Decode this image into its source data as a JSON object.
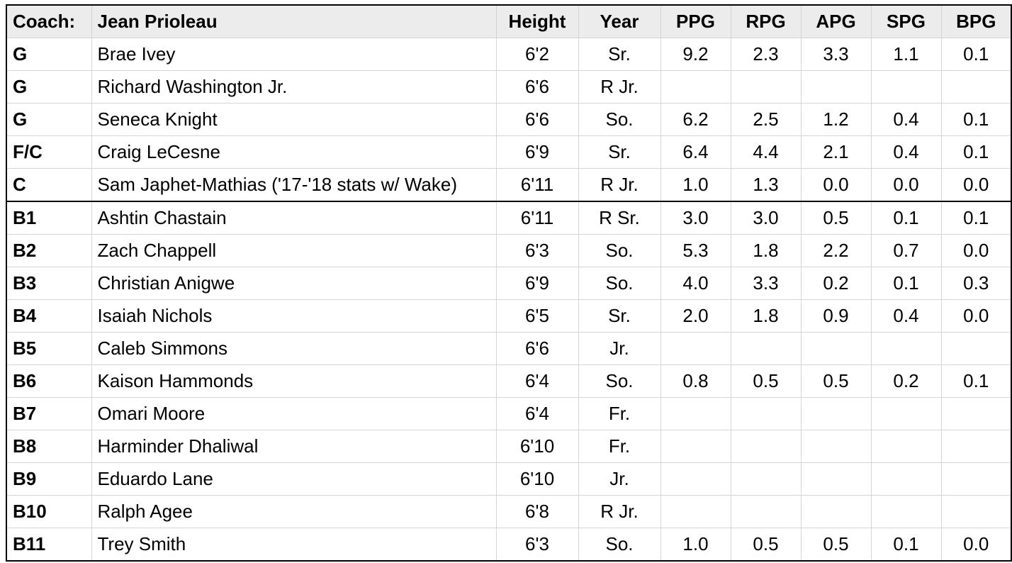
{
  "header": {
    "coach_label": "Coach:",
    "coach_name": "Jean Prioleau",
    "columns": [
      "Height",
      "Year",
      "PPG",
      "RPG",
      "APG",
      "SPG",
      "BPG"
    ]
  },
  "rows": [
    {
      "pos": "G",
      "name": "Brae Ivey",
      "height": "6'2",
      "year": "Sr.",
      "ppg": "9.2",
      "rpg": "2.3",
      "apg": "3.3",
      "spg": "1.1",
      "bpg": "0.1"
    },
    {
      "pos": "G",
      "name": "Richard Washington Jr.",
      "height": "6'6",
      "year": "R Jr.",
      "ppg": "",
      "rpg": "",
      "apg": "",
      "spg": "",
      "bpg": ""
    },
    {
      "pos": "G",
      "name": "Seneca Knight",
      "height": "6'6",
      "year": "So.",
      "ppg": "6.2",
      "rpg": "2.5",
      "apg": "1.2",
      "spg": "0.4",
      "bpg": "0.1"
    },
    {
      "pos": "F/C",
      "name": "Craig LeCesne",
      "height": "6'9",
      "year": "Sr.",
      "ppg": "6.4",
      "rpg": "4.4",
      "apg": "2.1",
      "spg": "0.4",
      "bpg": "0.1"
    },
    {
      "pos": "C",
      "name": "Sam Japhet-Mathias ('17-'18 stats w/ Wake)",
      "height": "6'11",
      "year": "R Jr.",
      "ppg": "1.0",
      "rpg": "1.3",
      "apg": "0.0",
      "spg": "0.0",
      "bpg": "0.0"
    },
    {
      "pos": "B1",
      "name": "Ashtin Chastain",
      "height": "6'11",
      "year": "R Sr.",
      "ppg": "3.0",
      "rpg": "3.0",
      "apg": "0.5",
      "spg": "0.1",
      "bpg": "0.1"
    },
    {
      "pos": "B2",
      "name": "Zach Chappell",
      "height": "6'3",
      "year": "So.",
      "ppg": "5.3",
      "rpg": "1.8",
      "apg": "2.2",
      "spg": "0.7",
      "bpg": "0.0"
    },
    {
      "pos": "B3",
      "name": "Christian Anigwe",
      "height": "6'9",
      "year": "So.",
      "ppg": "4.0",
      "rpg": "3.3",
      "apg": "0.2",
      "spg": "0.1",
      "bpg": "0.3"
    },
    {
      "pos": "B4",
      "name": "Isaiah Nichols",
      "height": "6'5",
      "year": "Sr.",
      "ppg": "2.0",
      "rpg": "1.8",
      "apg": "0.9",
      "spg": "0.4",
      "bpg": "0.0"
    },
    {
      "pos": "B5",
      "name": "Caleb Simmons",
      "height": "6'6",
      "year": "Jr.",
      "ppg": "",
      "rpg": "",
      "apg": "",
      "spg": "",
      "bpg": ""
    },
    {
      "pos": "B6",
      "name": "Kaison Hammonds",
      "height": "6'4",
      "year": "So.",
      "ppg": "0.8",
      "rpg": "0.5",
      "apg": "0.5",
      "spg": "0.2",
      "bpg": "0.1"
    },
    {
      "pos": "B7",
      "name": "Omari Moore",
      "height": "6'4",
      "year": "Fr.",
      "ppg": "",
      "rpg": "",
      "apg": "",
      "spg": "",
      "bpg": ""
    },
    {
      "pos": "B8",
      "name": "Harminder Dhaliwal",
      "height": "6'10",
      "year": "Fr.",
      "ppg": "",
      "rpg": "",
      "apg": "",
      "spg": "",
      "bpg": ""
    },
    {
      "pos": "B9",
      "name": "Eduardo Lane",
      "height": "6'10",
      "year": "Jr.",
      "ppg": "",
      "rpg": "",
      "apg": "",
      "spg": "",
      "bpg": ""
    },
    {
      "pos": "B10",
      "name": "Ralph Agee",
      "height": "6'8",
      "year": "R Jr.",
      "ppg": "",
      "rpg": "",
      "apg": "",
      "spg": "",
      "bpg": ""
    },
    {
      "pos": "B11",
      "name": "Trey Smith",
      "height": "6'3",
      "year": "So.",
      "ppg": "1.0",
      "rpg": "0.5",
      "apg": "0.5",
      "spg": "0.1",
      "bpg": "0.0"
    }
  ]
}
